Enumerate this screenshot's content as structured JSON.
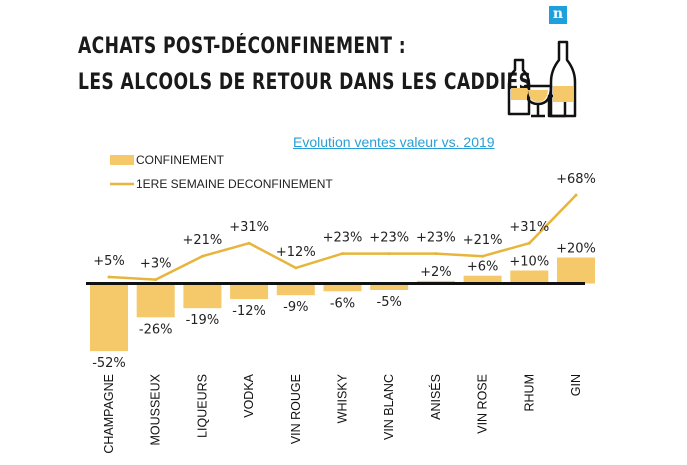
{
  "header": {
    "title_line1": "ACHATS POST-DÉCONFINEMENT :",
    "title_line2": "LES ALCOOLS DE RETOUR DANS LES CADDIES",
    "subtitle": "Evolution ventes valeur  vs. 2019",
    "logo_letter": "n"
  },
  "colors": {
    "bar": "#f5c869",
    "line": "#e8b53c",
    "axis": "#111111",
    "subtitle": "#2a9fd6",
    "logo": "#1ea0dc"
  },
  "chart_data": {
    "type": "bar",
    "categories": [
      "CHAMPAGNE",
      "MOUSSEUX",
      "LIQUEURS",
      "VODKA",
      "VIN ROUGE",
      "WHISKY",
      "VIN BLANC",
      "ANISÉS",
      "VIN ROSE",
      "RHUM",
      "GIN"
    ],
    "series": [
      {
        "name": "CONFINEMENT",
        "kind": "bar",
        "values": [
          -52,
          -26,
          -19,
          -12,
          -9,
          -6,
          -5,
          2,
          6,
          10,
          20
        ],
        "labels": [
          "-52%",
          "-26%",
          "-19%",
          "-12%",
          "-9%",
          "-6%",
          "-5%",
          "+2%",
          "+6%",
          "+10%",
          "+20%"
        ]
      },
      {
        "name": "1ERE SEMAINE DECONFINEMENT",
        "kind": "line",
        "values": [
          5,
          3,
          21,
          31,
          12,
          23,
          23,
          23,
          21,
          31,
          68
        ],
        "labels": [
          "+5%",
          "+3%",
          "+21%",
          "+31%",
          "+12%",
          "+23%",
          "+23%",
          "+23%",
          "+21%",
          "+31%",
          "+68%"
        ]
      }
    ],
    "legend_position": "top-left",
    "grid": false
  }
}
